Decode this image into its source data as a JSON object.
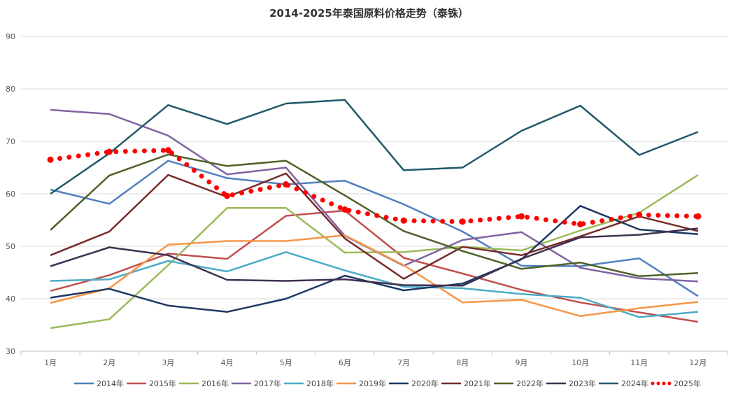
{
  "chart_data": {
    "type": "line",
    "title": "2014-2025年泰国原料价格走势（泰铢）",
    "xlabel": "",
    "ylabel": "",
    "ylim": [
      30,
      90
    ],
    "yticks": [
      "30",
      "40",
      "50",
      "60",
      "70",
      "80",
      "90"
    ],
    "grid": true,
    "legend_position": "bottom",
    "categories": [
      "1月",
      "2月",
      "3月",
      "4月",
      "5月",
      "6月",
      "7月",
      "8月",
      "9月",
      "10月",
      "11月",
      "12月"
    ],
    "series": [
      {
        "name": "2014年",
        "color": "#4f81bd",
        "style": "solid",
        "values": [
          60.8,
          58.1,
          66.3,
          63.0,
          61.8,
          62.5,
          58.0,
          52.8,
          46.3,
          46.2,
          47.7,
          40.5
        ]
      },
      {
        "name": "2015年",
        "color": "#c0504d",
        "style": "solid",
        "values": [
          41.5,
          44.5,
          48.6,
          47.6,
          55.8,
          56.8,
          47.8,
          44.8,
          41.7,
          39.3,
          37.4,
          35.6
        ]
      },
      {
        "name": "2016年",
        "color": "#9bbb59",
        "style": "solid",
        "values": [
          34.4,
          36.1,
          46.4,
          57.3,
          57.3,
          48.8,
          48.9,
          49.9,
          49.2,
          53.0,
          56.4,
          63.6
        ]
      },
      {
        "name": "2017年",
        "color": "#8064a2",
        "style": "solid",
        "values": [
          76.0,
          75.2,
          71.1,
          63.7,
          65.0,
          52.0,
          46.3,
          51.2,
          52.7,
          45.9,
          43.9,
          43.3
        ]
      },
      {
        "name": "2018年",
        "color": "#4bacc6",
        "style": "solid",
        "values": [
          43.4,
          43.7,
          47.2,
          45.2,
          48.9,
          45.4,
          42.3,
          42.0,
          40.9,
          40.2,
          36.5,
          37.5
        ]
      },
      {
        "name": "2019年",
        "color": "#f79646",
        "style": "solid",
        "values": [
          39.2,
          42.0,
          50.3,
          51.0,
          51.0,
          52.1,
          46.4,
          39.3,
          39.8,
          36.7,
          38.2,
          39.4
        ]
      },
      {
        "name": "2020年",
        "color": "#1f3864",
        "style": "solid",
        "values": [
          40.2,
          41.9,
          38.7,
          37.5,
          40.0,
          44.4,
          41.6,
          42.9,
          47.5,
          57.7,
          53.2,
          52.3
        ]
      },
      {
        "name": "2021年",
        "color": "#772c2a",
        "style": "solid",
        "values": [
          48.3,
          52.8,
          63.6,
          59.4,
          63.9,
          51.5,
          43.8,
          49.9,
          48.3,
          51.9,
          55.7,
          52.9
        ]
      },
      {
        "name": "2022年",
        "color": "#4f6228",
        "style": "solid",
        "values": [
          53.1,
          63.5,
          67.5,
          65.3,
          66.3,
          59.7,
          52.9,
          49.1,
          45.7,
          46.9,
          44.3,
          44.9
        ]
      },
      {
        "name": "2023年",
        "color": "#403152",
        "style": "solid",
        "values": [
          46.2,
          49.8,
          48.3,
          43.6,
          43.4,
          43.7,
          42.6,
          42.5,
          47.6,
          51.7,
          52.2,
          53.4
        ]
      },
      {
        "name": "2024年",
        "color": "#215968",
        "style": "solid",
        "values": [
          60.0,
          67.7,
          76.9,
          73.3,
          77.2,
          77.9,
          64.5,
          65.0,
          72.0,
          76.8,
          67.4,
          71.8
        ]
      },
      {
        "name": "2025年",
        "color": "#ff0000",
        "style": "dotted",
        "values": [
          66.5,
          68.0,
          68.3,
          59.6,
          61.8,
          57.0,
          54.9,
          54.7,
          55.7,
          54.2,
          56.0,
          55.7
        ]
      }
    ]
  }
}
